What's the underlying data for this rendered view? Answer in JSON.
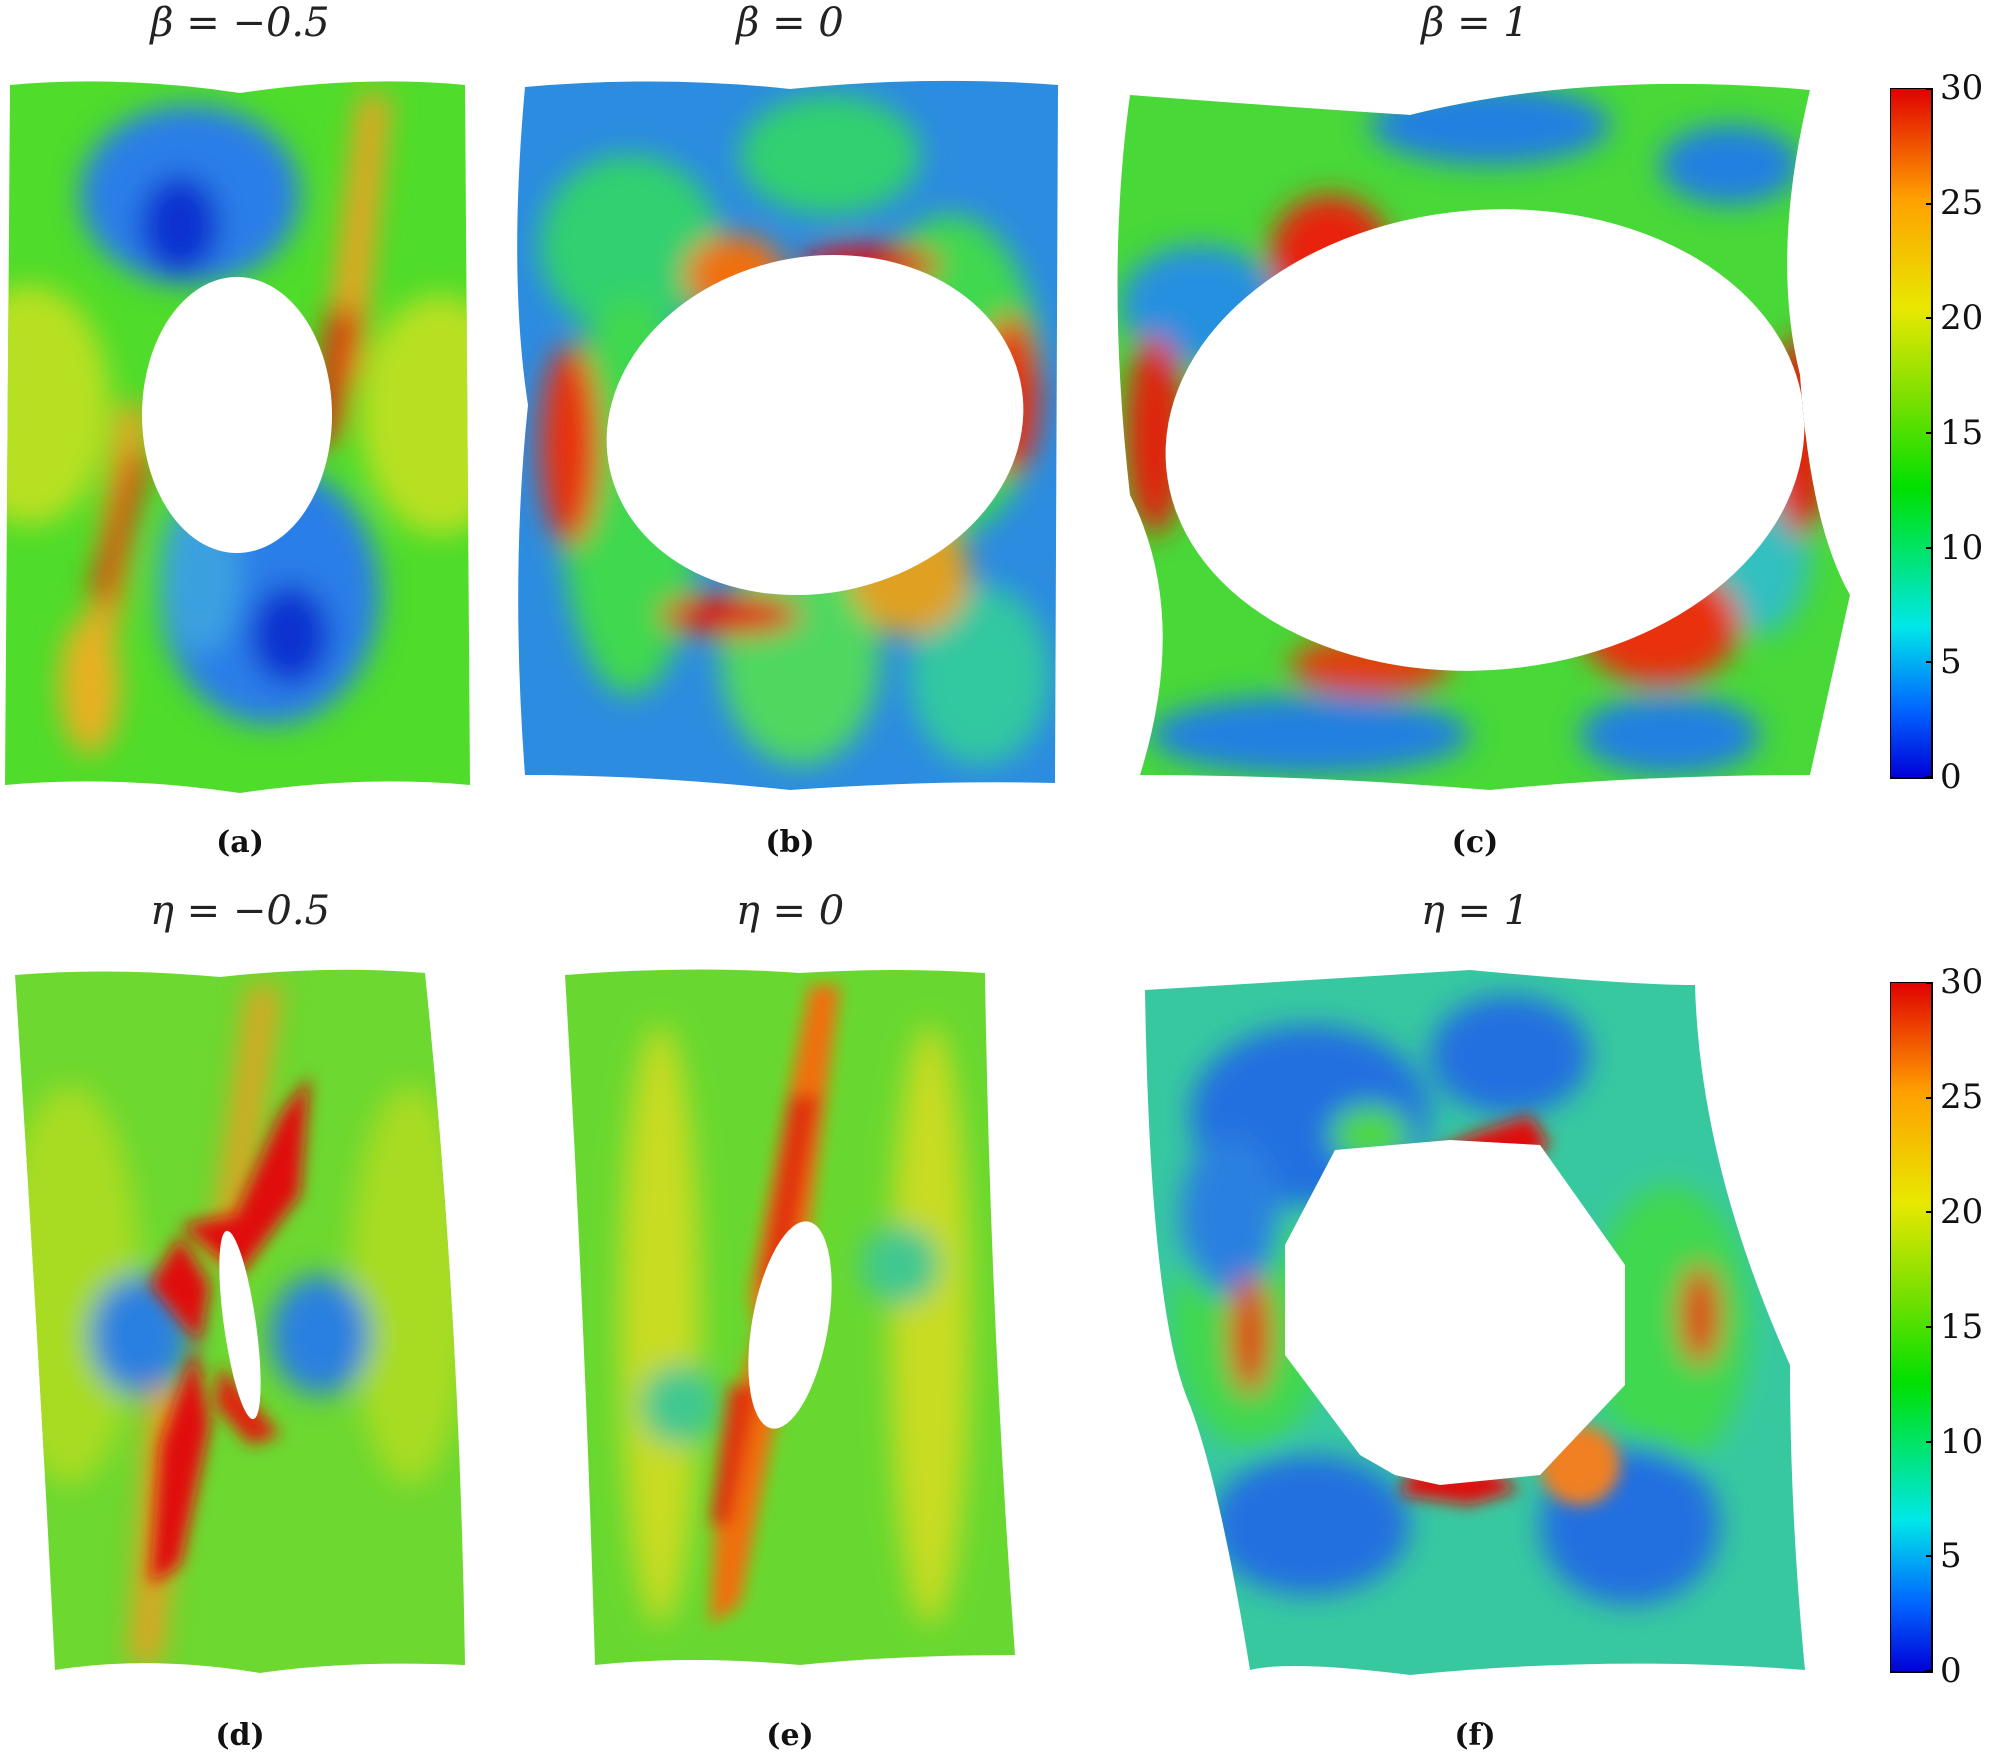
{
  "figure": {
    "panels": [
      {
        "id": "a",
        "title": "β = −0.5",
        "caption": "(a)"
      },
      {
        "id": "b",
        "title": "β = 0",
        "caption": "(b)"
      },
      {
        "id": "c",
        "title": "β = 1",
        "caption": "(c)"
      },
      {
        "id": "d",
        "title": "η = −0.5",
        "caption": "(d)"
      },
      {
        "id": "e",
        "title": "η = 0",
        "caption": "(e)"
      },
      {
        "id": "f",
        "title": "η = 1",
        "caption": "(f)"
      }
    ],
    "colorbar": {
      "ticks": [
        "30",
        "25",
        "20",
        "15",
        "10",
        "5",
        "0"
      ],
      "range": [
        0,
        30
      ],
      "colors": [
        "#0000d8",
        "#0066ff",
        "#00e8e8",
        "#00e000",
        "#7be000",
        "#e8e800",
        "#ffa000",
        "#e00000"
      ]
    }
  }
}
